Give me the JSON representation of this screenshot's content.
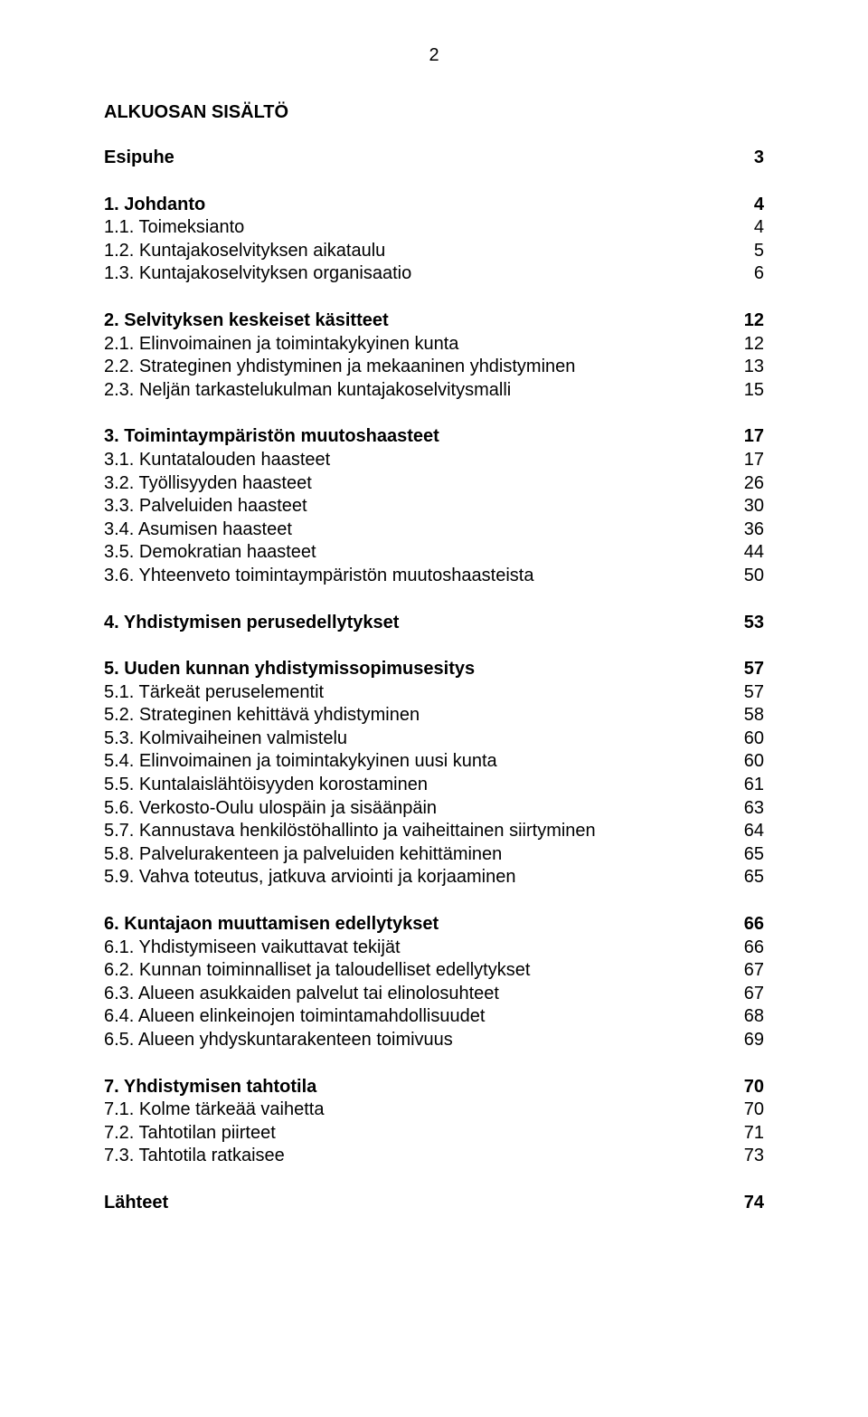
{
  "page_number": "2",
  "title": "ALKUOSAN SISÄLTÖ",
  "toc": [
    {
      "label": "Esipuhe",
      "page": "3",
      "bold": true,
      "gap_before": 0
    },
    {
      "label": "1. Johdanto",
      "page": "4",
      "bold": true,
      "gap_before": 26
    },
    {
      "label": "1.1. Toimeksianto",
      "page": "4",
      "bold": false,
      "gap_before": 0
    },
    {
      "label": "1.2. Kuntajakoselvityksen aikataulu",
      "page": "5",
      "bold": false,
      "gap_before": 0
    },
    {
      "label": "1.3. Kuntajakoselvityksen organisaatio",
      "page": "6",
      "bold": false,
      "gap_before": 0
    },
    {
      "label": "2. Selvityksen keskeiset käsitteet",
      "page": "12",
      "bold": true,
      "gap_before": 26
    },
    {
      "label": "2.1. Elinvoimainen ja toimintakykyinen kunta",
      "page": "12",
      "bold": false,
      "gap_before": 0
    },
    {
      "label": "2.2. Strateginen yhdistyminen ja mekaaninen yhdistyminen",
      "page": "13",
      "bold": false,
      "gap_before": 0
    },
    {
      "label": "2.3. Neljän tarkastelukulman kuntajakoselvitysmalli",
      "page": "15",
      "bold": false,
      "gap_before": 0
    },
    {
      "label": "3. Toimintaympäristön muutoshaasteet",
      "page": "17",
      "bold": true,
      "gap_before": 26
    },
    {
      "label": "3.1. Kuntatalouden haasteet",
      "page": "17",
      "bold": false,
      "gap_before": 0
    },
    {
      "label": "3.2. Työllisyyden haasteet",
      "page": "26",
      "bold": false,
      "gap_before": 0
    },
    {
      "label": "3.3. Palveluiden haasteet",
      "page": "30",
      "bold": false,
      "gap_before": 0
    },
    {
      "label": "3.4. Asumisen haasteet",
      "page": "36",
      "bold": false,
      "gap_before": 0
    },
    {
      "label": "3.5. Demokratian haasteet",
      "page": "44",
      "bold": false,
      "gap_before": 0
    },
    {
      "label": "3.6. Yhteenveto toimintaympäristön muutoshaasteista",
      "page": "50",
      "bold": false,
      "gap_before": 0
    },
    {
      "label": "4. Yhdistymisen perusedellytykset",
      "page": "53",
      "bold": true,
      "gap_before": 26
    },
    {
      "label": "5. Uuden kunnan yhdistymissopimusesitys",
      "page": "57",
      "bold": true,
      "gap_before": 26
    },
    {
      "label": "5.1. Tärkeät peruselementit",
      "page": "57",
      "bold": false,
      "gap_before": 0
    },
    {
      "label": "5.2. Strateginen kehittävä yhdistyminen",
      "page": "58",
      "bold": false,
      "gap_before": 0
    },
    {
      "label": "5.3. Kolmivaiheinen valmistelu",
      "page": "60",
      "bold": false,
      "gap_before": 0
    },
    {
      "label": "5.4. Elinvoimainen ja toimintakykyinen uusi kunta",
      "page": "60",
      "bold": false,
      "gap_before": 0
    },
    {
      "label": "5.5. Kuntalaislähtöisyyden korostaminen",
      "page": "61",
      "bold": false,
      "gap_before": 0
    },
    {
      "label": "5.6. Verkosto-Oulu ulospäin ja sisäänpäin",
      "page": "63",
      "bold": false,
      "gap_before": 0
    },
    {
      "label": "5.7. Kannustava henkilöstöhallinto ja vaiheittainen siirtyminen",
      "page": "64",
      "bold": false,
      "gap_before": 0
    },
    {
      "label": "5.8. Palvelurakenteen ja palveluiden kehittäminen",
      "page": "65",
      "bold": false,
      "gap_before": 0
    },
    {
      "label": "5.9. Vahva toteutus, jatkuva arviointi ja korjaaminen",
      "page": "65",
      "bold": false,
      "gap_before": 0
    },
    {
      "label": "6. Kuntajaon muuttamisen edellytykset",
      "page": "66",
      "bold": true,
      "gap_before": 26
    },
    {
      "label": "6.1. Yhdistymiseen vaikuttavat tekijät",
      "page": "66",
      "bold": false,
      "gap_before": 0
    },
    {
      "label": "6.2. Kunnan toiminnalliset ja taloudelliset edellytykset",
      "page": "67",
      "bold": false,
      "gap_before": 0
    },
    {
      "label": "6.3. Alueen asukkaiden palvelut tai elinolosuhteet",
      "page": "67",
      "bold": false,
      "gap_before": 0
    },
    {
      "label": "6.4. Alueen elinkeinojen toimintamahdollisuudet",
      "page": "68",
      "bold": false,
      "gap_before": 0
    },
    {
      "label": "6.5. Alueen yhdyskuntarakenteen toimivuus",
      "page": "69",
      "bold": false,
      "gap_before": 0
    },
    {
      "label": "7. Yhdistymisen tahtotila",
      "page": "70",
      "bold": true,
      "gap_before": 26
    },
    {
      "label": "7.1. Kolme tärkeää vaihetta",
      "page": "70",
      "bold": false,
      "gap_before": 0
    },
    {
      "label": "7.2. Tahtotilan piirteet",
      "page": "71",
      "bold": false,
      "gap_before": 0
    },
    {
      "label": "7.3. Tahtotila ratkaisee",
      "page": "73",
      "bold": false,
      "gap_before": 0
    },
    {
      "label": "Lähteet",
      "page": "74",
      "bold": true,
      "gap_before": 26
    }
  ]
}
